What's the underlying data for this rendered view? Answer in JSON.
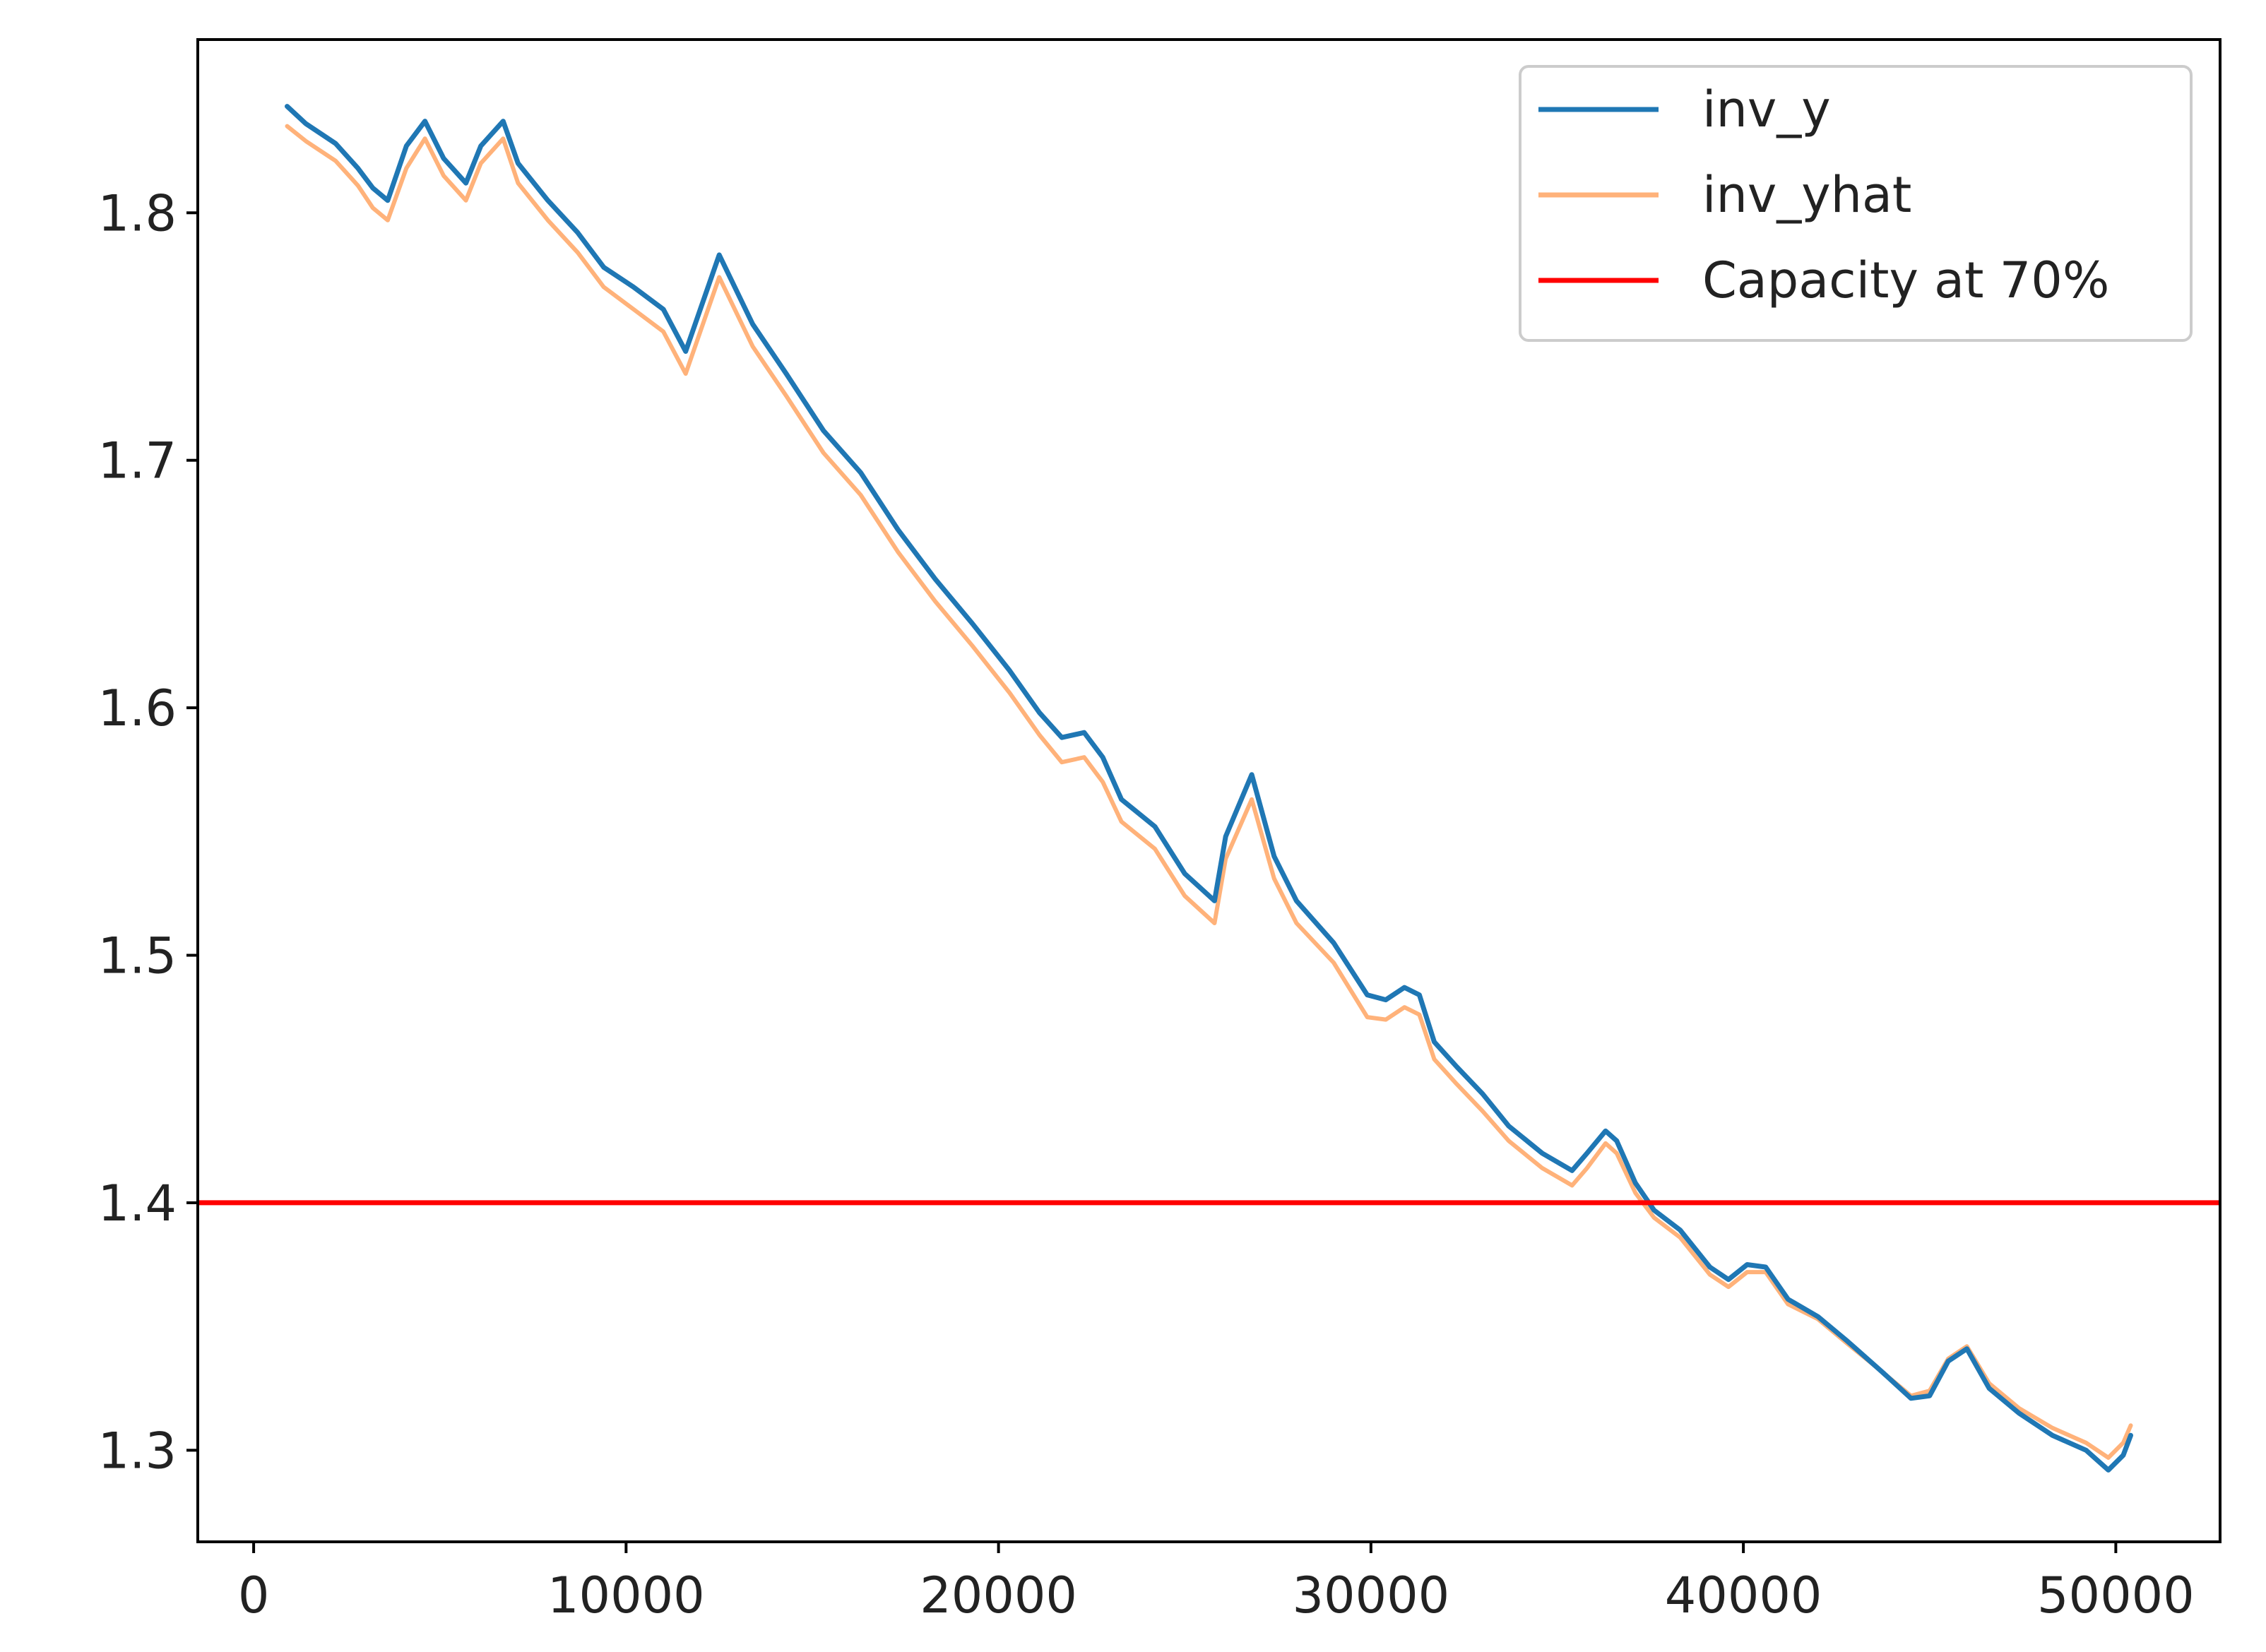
{
  "chart_data": {
    "type": "line",
    "title": "",
    "xlabel": "",
    "ylabel": "",
    "xlim": [
      -1500,
      52800
    ],
    "ylim": [
      1.263,
      1.87
    ],
    "xticks": [
      0,
      10000,
      20000,
      30000,
      40000,
      50000
    ],
    "xtick_labels": [
      "0",
      "10000",
      "20000",
      "30000",
      "40000",
      "50000"
    ],
    "yticks": [
      1.3,
      1.4,
      1.5,
      1.6,
      1.7,
      1.8
    ],
    "ytick_labels": [
      "1.3",
      "1.4",
      "1.5",
      "1.6",
      "1.7",
      "1.8"
    ],
    "grid": false,
    "legend_position": "top-right",
    "series": [
      {
        "name": "inv_y",
        "color": "#1f77b4",
        "points": [
          [
            900,
            1.843
          ],
          [
            1400,
            1.836
          ],
          [
            2200,
            1.828
          ],
          [
            2800,
            1.818
          ],
          [
            3200,
            1.81
          ],
          [
            3600,
            1.805
          ],
          [
            4100,
            1.827
          ],
          [
            4600,
            1.837
          ],
          [
            5100,
            1.822
          ],
          [
            5700,
            1.812
          ],
          [
            6100,
            1.827
          ],
          [
            6700,
            1.837
          ],
          [
            7100,
            1.82
          ],
          [
            7900,
            1.805
          ],
          [
            8700,
            1.792
          ],
          [
            9400,
            1.778
          ],
          [
            10200,
            1.77
          ],
          [
            11000,
            1.761
          ],
          [
            11600,
            1.744
          ],
          [
            12500,
            1.783
          ],
          [
            13400,
            1.755
          ],
          [
            14300,
            1.735
          ],
          [
            15300,
            1.712
          ],
          [
            16300,
            1.695
          ],
          [
            17300,
            1.672
          ],
          [
            18300,
            1.652
          ],
          [
            19300,
            1.634
          ],
          [
            20300,
            1.615
          ],
          [
            21100,
            1.598
          ],
          [
            21700,
            1.588
          ],
          [
            22300,
            1.59
          ],
          [
            22800,
            1.58
          ],
          [
            23300,
            1.563
          ],
          [
            24200,
            1.552
          ],
          [
            25000,
            1.533
          ],
          [
            25800,
            1.522
          ],
          [
            26100,
            1.548
          ],
          [
            26800,
            1.573
          ],
          [
            27400,
            1.54
          ],
          [
            28000,
            1.522
          ],
          [
            29000,
            1.505
          ],
          [
            29900,
            1.484
          ],
          [
            30400,
            1.482
          ],
          [
            30900,
            1.487
          ],
          [
            31300,
            1.484
          ],
          [
            31700,
            1.465
          ],
          [
            32300,
            1.455
          ],
          [
            33000,
            1.444
          ],
          [
            33700,
            1.431
          ],
          [
            34600,
            1.42
          ],
          [
            35400,
            1.413
          ],
          [
            35800,
            1.42
          ],
          [
            36300,
            1.429
          ],
          [
            36600,
            1.425
          ],
          [
            37100,
            1.408
          ],
          [
            37600,
            1.397
          ],
          [
            38300,
            1.389
          ],
          [
            39100,
            1.374
          ],
          [
            39600,
            1.369
          ],
          [
            40100,
            1.375
          ],
          [
            40600,
            1.374
          ],
          [
            41200,
            1.361
          ],
          [
            42000,
            1.354
          ],
          [
            42800,
            1.344
          ],
          [
            43700,
            1.332
          ],
          [
            44500,
            1.321
          ],
          [
            45000,
            1.322
          ],
          [
            45500,
            1.336
          ],
          [
            46000,
            1.341
          ],
          [
            46600,
            1.325
          ],
          [
            47400,
            1.315
          ],
          [
            48300,
            1.306
          ],
          [
            49200,
            1.3
          ],
          [
            49800,
            1.292
          ],
          [
            50200,
            1.298
          ],
          [
            50400,
            1.306
          ]
        ]
      },
      {
        "name": "inv_yhat",
        "color": "#ffb27a",
        "points": [
          [
            900,
            1.835
          ],
          [
            1400,
            1.829
          ],
          [
            2200,
            1.821
          ],
          [
            2800,
            1.811
          ],
          [
            3200,
            1.802
          ],
          [
            3600,
            1.797
          ],
          [
            4100,
            1.818
          ],
          [
            4600,
            1.83
          ],
          [
            5100,
            1.815
          ],
          [
            5700,
            1.805
          ],
          [
            6100,
            1.82
          ],
          [
            6700,
            1.83
          ],
          [
            7100,
            1.812
          ],
          [
            7900,
            1.797
          ],
          [
            8700,
            1.784
          ],
          [
            9400,
            1.77
          ],
          [
            10200,
            1.761
          ],
          [
            11000,
            1.752
          ],
          [
            11600,
            1.735
          ],
          [
            12500,
            1.774
          ],
          [
            13400,
            1.746
          ],
          [
            14300,
            1.726
          ],
          [
            15300,
            1.703
          ],
          [
            16300,
            1.686
          ],
          [
            17300,
            1.663
          ],
          [
            18300,
            1.643
          ],
          [
            19300,
            1.625
          ],
          [
            20300,
            1.606
          ],
          [
            21100,
            1.589
          ],
          [
            21700,
            1.578
          ],
          [
            22300,
            1.58
          ],
          [
            22800,
            1.57
          ],
          [
            23300,
            1.554
          ],
          [
            24200,
            1.543
          ],
          [
            25000,
            1.524
          ],
          [
            25800,
            1.513
          ],
          [
            26100,
            1.539
          ],
          [
            26800,
            1.563
          ],
          [
            27400,
            1.531
          ],
          [
            28000,
            1.513
          ],
          [
            29000,
            1.497
          ],
          [
            29900,
            1.475
          ],
          [
            30400,
            1.474
          ],
          [
            30900,
            1.479
          ],
          [
            31300,
            1.476
          ],
          [
            31700,
            1.458
          ],
          [
            32300,
            1.448
          ],
          [
            33000,
            1.437
          ],
          [
            33700,
            1.425
          ],
          [
            34600,
            1.414
          ],
          [
            35400,
            1.407
          ],
          [
            35800,
            1.414
          ],
          [
            36300,
            1.424
          ],
          [
            36600,
            1.42
          ],
          [
            37100,
            1.404
          ],
          [
            37600,
            1.394
          ],
          [
            38300,
            1.386
          ],
          [
            39100,
            1.371
          ],
          [
            39600,
            1.366
          ],
          [
            40100,
            1.372
          ],
          [
            40600,
            1.372
          ],
          [
            41200,
            1.359
          ],
          [
            42000,
            1.353
          ],
          [
            42800,
            1.343
          ],
          [
            43700,
            1.332
          ],
          [
            44500,
            1.322
          ],
          [
            45000,
            1.324
          ],
          [
            45500,
            1.337
          ],
          [
            46000,
            1.342
          ],
          [
            46600,
            1.327
          ],
          [
            47400,
            1.317
          ],
          [
            48300,
            1.309
          ],
          [
            49200,
            1.303
          ],
          [
            49800,
            1.297
          ],
          [
            50200,
            1.303
          ],
          [
            50400,
            1.31
          ]
        ]
      }
    ],
    "hlines": [
      {
        "name": "Capacity at 70%",
        "y": 1.4,
        "color": "#ff0000"
      }
    ],
    "legend": [
      {
        "label": "inv_y",
        "color": "#1f77b4"
      },
      {
        "label": "inv_yhat",
        "color": "#ffb27a"
      },
      {
        "label": "Capacity at 70%",
        "color": "#ff0000"
      }
    ]
  }
}
